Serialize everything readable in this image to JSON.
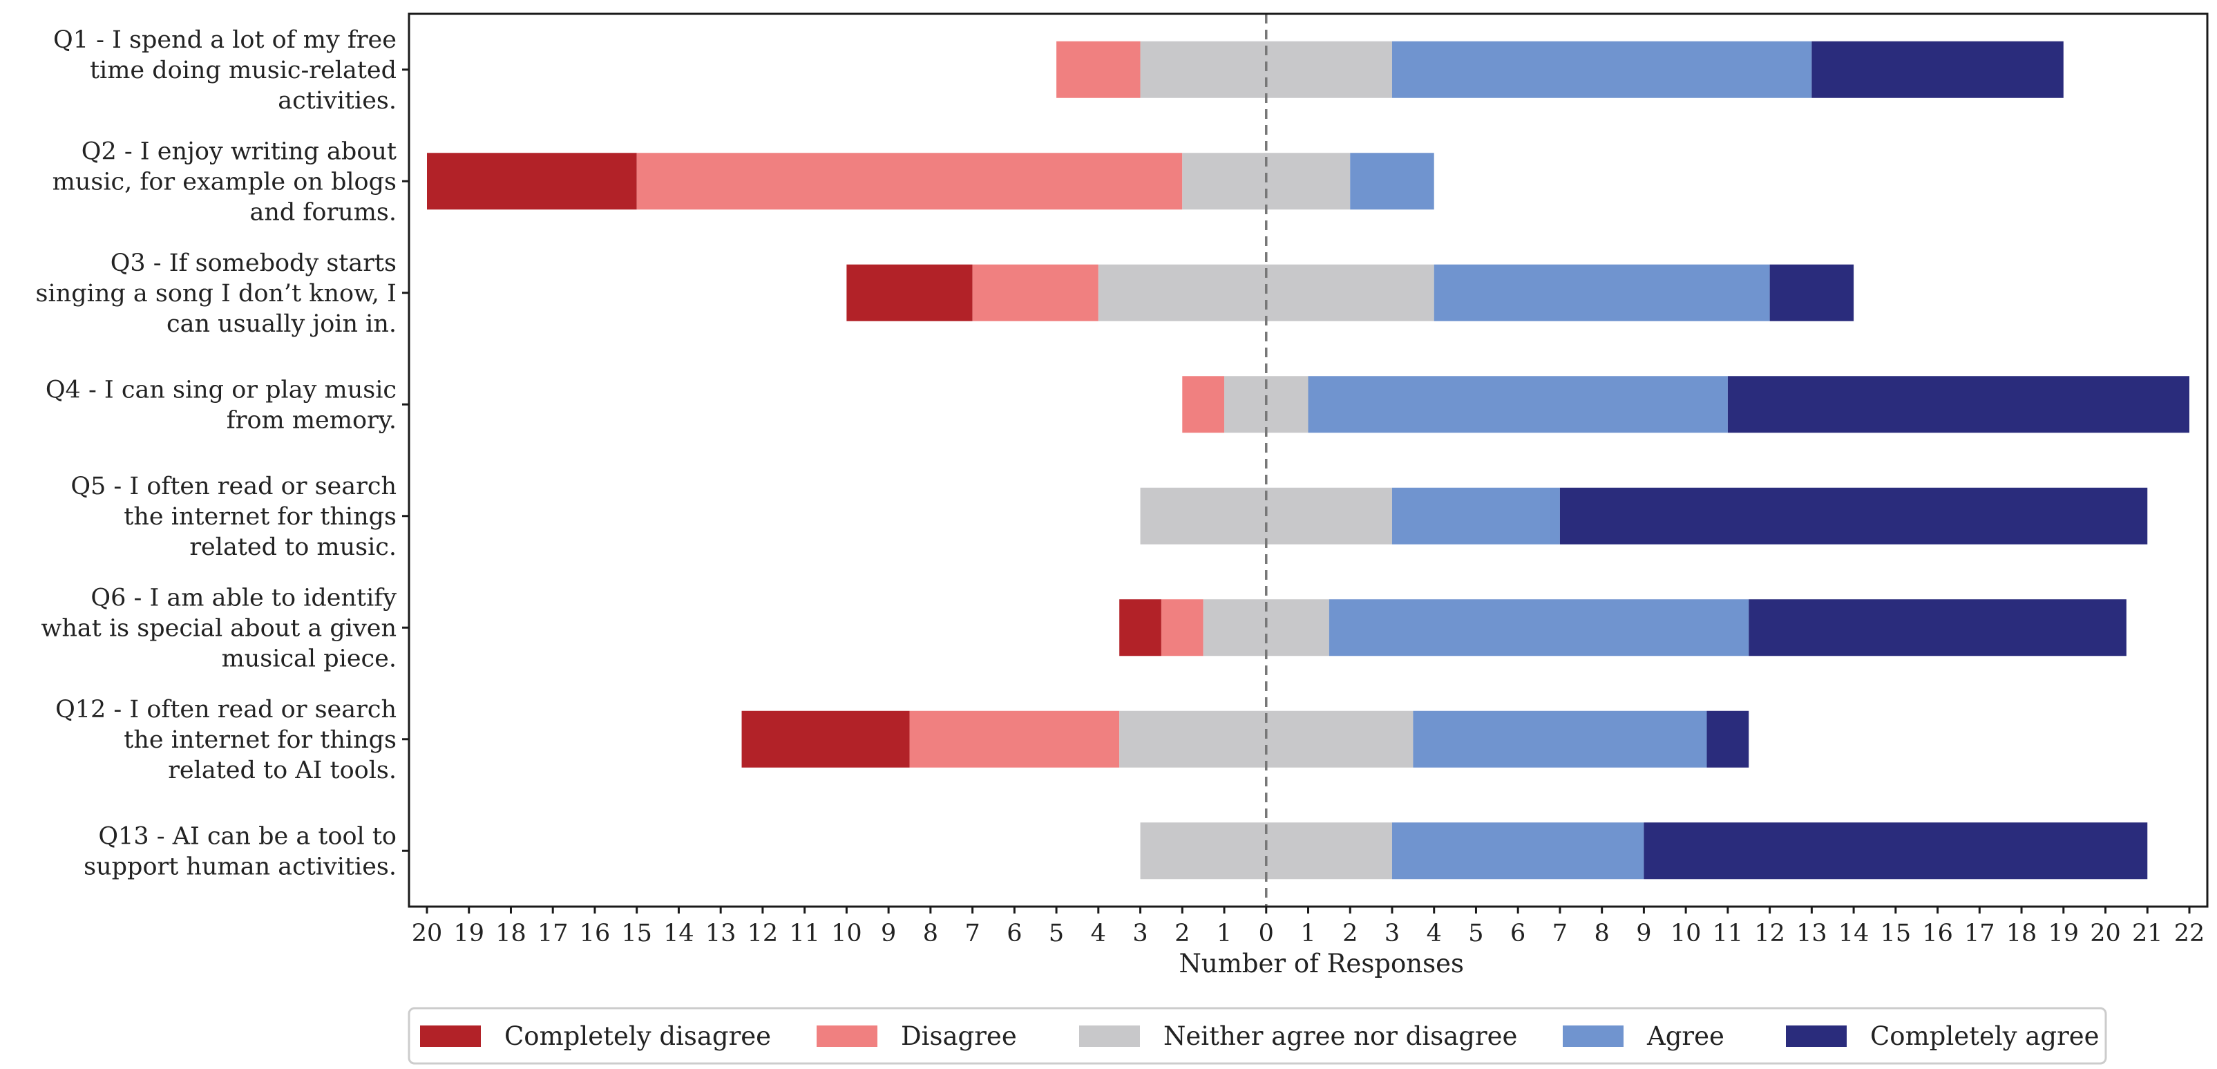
{
  "chart_data": {
    "type": "bar",
    "orientation": "horizontal",
    "stacking": "diverging",
    "xlabel": "Number of Responses",
    "xlim": [
      -20,
      22
    ],
    "x_ticks": [
      -20,
      -19,
      -18,
      -17,
      -16,
      -15,
      -14,
      -13,
      -12,
      -11,
      -10,
      -9,
      -8,
      -7,
      -6,
      -5,
      -4,
      -3,
      -2,
      -1,
      0,
      1,
      2,
      3,
      4,
      5,
      6,
      7,
      8,
      9,
      10,
      11,
      12,
      13,
      14,
      15,
      16,
      17,
      18,
      19,
      20,
      21,
      22
    ],
    "x_tick_labels": [
      "20",
      "19",
      "18",
      "17",
      "16",
      "15",
      "14",
      "13",
      "12",
      "11",
      "10",
      "9",
      "8",
      "7",
      "6",
      "5",
      "4",
      "3",
      "2",
      "1",
      "0",
      "1",
      "2",
      "3",
      "4",
      "5",
      "6",
      "7",
      "8",
      "9",
      "10",
      "11",
      "12",
      "13",
      "14",
      "15",
      "16",
      "17",
      "18",
      "19",
      "20",
      "21",
      "22"
    ],
    "reference_line": 0,
    "grid": false,
    "legend_position": "bottom",
    "categories": [
      [
        "Q1 - I spend a lot of my free",
        "time doing music-related",
        "activities."
      ],
      [
        "Q2 - I enjoy writing about",
        "music, for example on blogs",
        "and forums."
      ],
      [
        "Q3 - If somebody starts",
        "singing a song I don’t know, I",
        "can usually join in."
      ],
      [
        "Q4 - I can sing or play music",
        "from memory."
      ],
      [
        "Q5 - I often read or search",
        "the internet for things",
        "related to music."
      ],
      [
        "Q6 - I am able to identify",
        "what is special about a given",
        "musical piece."
      ],
      [
        "Q12 - I often read or search",
        "the internet for things",
        "related to AI tools."
      ],
      [
        "Q13 - AI can be a tool to",
        "support human activities."
      ]
    ],
    "series": [
      {
        "name": "Completely disagree",
        "color": "#b22228",
        "values": [
          0,
          5,
          3,
          0,
          0,
          1,
          4,
          0
        ]
      },
      {
        "name": "Disagree",
        "color": "#f08080",
        "values": [
          2,
          13,
          3,
          1,
          0,
          1,
          5,
          0
        ]
      },
      {
        "name": "Neither agree nor disagree",
        "color": "#c8c8ca",
        "values": [
          6,
          4,
          8,
          2,
          6,
          3,
          7,
          6
        ]
      },
      {
        "name": "Agree",
        "color": "#7094cf",
        "values": [
          10,
          2,
          8,
          10,
          4,
          10,
          7,
          6
        ]
      },
      {
        "name": "Completely agree",
        "color": "#2a2c7c",
        "values": [
          6,
          0,
          2,
          11,
          14,
          9,
          1,
          12
        ]
      }
    ]
  }
}
